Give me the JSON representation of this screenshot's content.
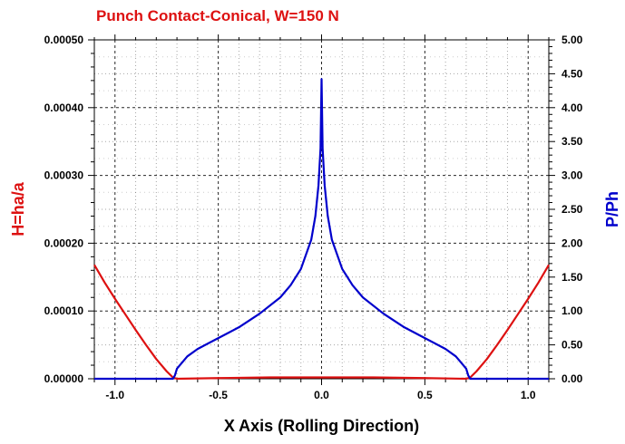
{
  "colors": {
    "h_series": "#dd1111",
    "p_series": "#0000cc",
    "axis": "#000000",
    "grid": "#000000"
  },
  "chart_data": {
    "type": "line",
    "title": "Punch Contact-Conical, W=150 N",
    "xlabel": "X Axis (Rolling Direction)",
    "ylabel_left": "H=ha/a",
    "ylabel_right": "P/Ph",
    "xlim": [
      -1.1,
      1.1
    ],
    "ylim_left": [
      0,
      0.0005
    ],
    "ylim_right": [
      0,
      5
    ],
    "x_ticks": [
      -1.0,
      -0.5,
      0.0,
      0.5,
      1.0
    ],
    "x_tick_labels": [
      "-1.0",
      "-0.5",
      "0.0",
      "0.5",
      "1.0"
    ],
    "y_left_ticks": [
      0,
      0.0001,
      0.0002,
      0.0003,
      0.0004,
      0.0005
    ],
    "y_left_tick_labels": [
      "0.00000",
      "0.00010",
      "0.00020",
      "0.00030",
      "0.00040",
      "0.00050"
    ],
    "y_right_ticks": [
      0,
      0.5,
      1,
      1.5,
      2,
      2.5,
      3,
      3.5,
      4,
      4.5,
      5
    ],
    "y_right_tick_labels": [
      "0.00",
      "0.50",
      "1.00",
      "1.50",
      "2.00",
      "2.50",
      "3.00",
      "3.50",
      "4.00",
      "4.50",
      "5.00"
    ],
    "grid": true,
    "series": [
      {
        "name": "H=ha/a",
        "axis": "left",
        "x": [
          -1.1,
          -1.05,
          -1.0,
          -0.95,
          -0.9,
          -0.85,
          -0.8,
          -0.75,
          -0.72,
          -0.7,
          -0.5,
          -0.25,
          0.0,
          0.25,
          0.5,
          0.7,
          0.72,
          0.75,
          0.8,
          0.85,
          0.9,
          0.95,
          1.0,
          1.05,
          1.1
        ],
        "y": [
          0.000168,
          0.000142,
          0.000118,
          9.5e-05,
          7.2e-05,
          5e-05,
          2.9e-05,
          1.1e-05,
          2e-06,
          0.0,
          1e-06,
          2e-06,
          2e-06,
          2e-06,
          1e-06,
          0.0,
          2e-06,
          1.1e-05,
          2.9e-05,
          5e-05,
          7.2e-05,
          9.5e-05,
          0.000118,
          0.000142,
          0.000168
        ]
      },
      {
        "name": "P/Ph",
        "axis": "right",
        "x": [
          -1.1,
          -0.72,
          -0.71,
          -0.7,
          -0.65,
          -0.6,
          -0.5,
          -0.4,
          -0.3,
          -0.2,
          -0.15,
          -0.1,
          -0.05,
          -0.03,
          -0.015,
          -0.005,
          0.0,
          0.005,
          0.015,
          0.03,
          0.05,
          0.1,
          0.15,
          0.2,
          0.3,
          0.4,
          0.5,
          0.6,
          0.65,
          0.7,
          0.71,
          0.72,
          1.1
        ],
        "y": [
          0.0,
          0.0,
          0.05,
          0.15,
          0.33,
          0.44,
          0.6,
          0.76,
          0.96,
          1.2,
          1.38,
          1.62,
          2.05,
          2.4,
          2.85,
          3.4,
          4.42,
          3.4,
          2.85,
          2.4,
          2.05,
          1.62,
          1.38,
          1.2,
          0.96,
          0.76,
          0.6,
          0.44,
          0.33,
          0.15,
          0.05,
          0.0,
          0.0
        ]
      }
    ]
  }
}
